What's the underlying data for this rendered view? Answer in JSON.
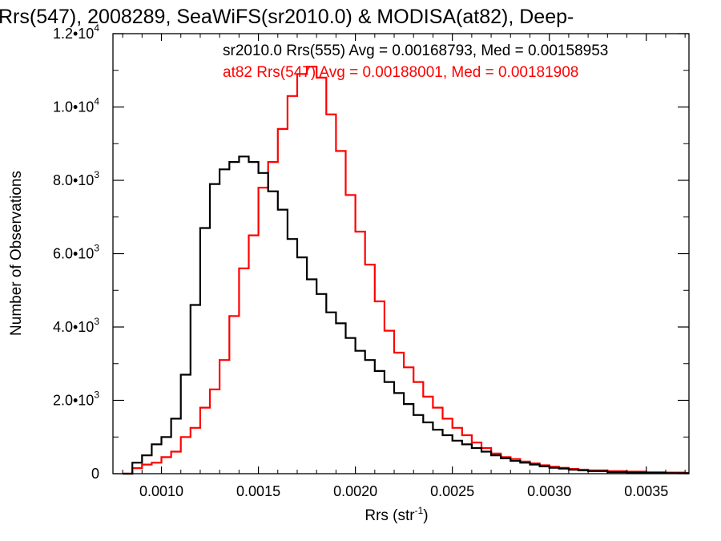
{
  "chart_data": {
    "type": "histogram",
    "title": "Rrs(547), 2008289, SeaWiFS(sr2010.0) & MODISA(at82), Deep-",
    "xlabel": "Rrs (str",
    "xlabel_sup": "-1",
    "xlabel_close": ")",
    "ylabel": "Number of Observations",
    "xlim": [
      0.00075,
      0.00372
    ],
    "ylim": [
      0,
      12000
    ],
    "x_ticks": [
      0.001,
      0.0015,
      0.002,
      0.0025,
      0.003,
      0.0035
    ],
    "x_tick_labels": [
      "0.0010",
      "0.0015",
      "0.0020",
      "0.0025",
      "0.0030",
      "0.0035"
    ],
    "y_ticks": [
      {
        "value": 0,
        "mant": "0",
        "exp": ""
      },
      {
        "value": 2000,
        "mant": "2.0•10",
        "exp": "3"
      },
      {
        "value": 4000,
        "mant": "4.0•10",
        "exp": "3"
      },
      {
        "value": 6000,
        "mant": "6.0•10",
        "exp": "3"
      },
      {
        "value": 8000,
        "mant": "8.0•10",
        "exp": "3"
      },
      {
        "value": 10000,
        "mant": "1.0•10",
        "exp": "4"
      },
      {
        "value": 12000,
        "mant": "1.2•10",
        "exp": "4"
      }
    ],
    "grid": false,
    "legend_position": "top-right",
    "series": [
      {
        "name": "sr2010.0 Rrs(555) Avg = 0.00168793, Med = 0.00158953",
        "color": "#000000",
        "x": [
          0.0008,
          0.00085,
          0.0009,
          0.00095,
          0.001,
          0.00105,
          0.0011,
          0.00115,
          0.0012,
          0.00125,
          0.0013,
          0.00135,
          0.0014,
          0.00145,
          0.0015,
          0.00155,
          0.0016,
          0.00165,
          0.0017,
          0.00175,
          0.0018,
          0.00185,
          0.0019,
          0.00195,
          0.002,
          0.00205,
          0.0021,
          0.00215,
          0.0022,
          0.00225,
          0.0023,
          0.00235,
          0.0024,
          0.00245,
          0.0025,
          0.00255,
          0.0026,
          0.00265,
          0.0027,
          0.00275,
          0.0028,
          0.00285,
          0.0029,
          0.00295,
          0.003,
          0.00305,
          0.0031,
          0.00315,
          0.0032,
          0.0033,
          0.0034,
          0.0035,
          0.0036,
          0.0037
        ],
        "y": [
          0,
          300,
          500,
          800,
          1000,
          1500,
          2700,
          4600,
          6700,
          7900,
          8300,
          8500,
          8650,
          8500,
          8200,
          7700,
          7200,
          6400,
          5900,
          5300,
          4900,
          4400,
          4100,
          3700,
          3350,
          3100,
          2800,
          2500,
          2200,
          1900,
          1600,
          1400,
          1200,
          1050,
          900,
          800,
          700,
          600,
          500,
          420,
          350,
          300,
          250,
          200,
          160,
          140,
          110,
          90,
          70,
          40,
          30,
          20,
          15,
          10
        ]
      },
      {
        "name": "at82 Rrs(547) Avg = 0.00188001, Med = 0.00181908",
        "color": "#ff0000",
        "x": [
          0.0008,
          0.00085,
          0.0009,
          0.00095,
          0.001,
          0.00105,
          0.0011,
          0.00115,
          0.0012,
          0.00125,
          0.0013,
          0.00135,
          0.0014,
          0.00145,
          0.0015,
          0.00155,
          0.0016,
          0.00165,
          0.0017,
          0.00175,
          0.0018,
          0.00185,
          0.0019,
          0.00195,
          0.002,
          0.00205,
          0.0021,
          0.00215,
          0.0022,
          0.00225,
          0.0023,
          0.00235,
          0.0024,
          0.00245,
          0.0025,
          0.00255,
          0.0026,
          0.00265,
          0.0027,
          0.00275,
          0.0028,
          0.00285,
          0.0029,
          0.00295,
          0.003,
          0.00305,
          0.0031,
          0.00315,
          0.0032,
          0.0033,
          0.0034,
          0.0035,
          0.0036,
          0.0037
        ],
        "y": [
          0,
          150,
          250,
          300,
          450,
          600,
          1000,
          1250,
          1800,
          2300,
          3100,
          4300,
          5600,
          6500,
          7800,
          8500,
          9400,
          10300,
          10900,
          11100,
          10800,
          9800,
          8800,
          7600,
          6600,
          5700,
          4700,
          3900,
          3300,
          2900,
          2500,
          2100,
          1800,
          1500,
          1250,
          1050,
          850,
          700,
          550,
          450,
          400,
          330,
          280,
          230,
          190,
          160,
          130,
          110,
          90,
          70,
          55,
          40,
          30,
          20
        ]
      }
    ]
  }
}
